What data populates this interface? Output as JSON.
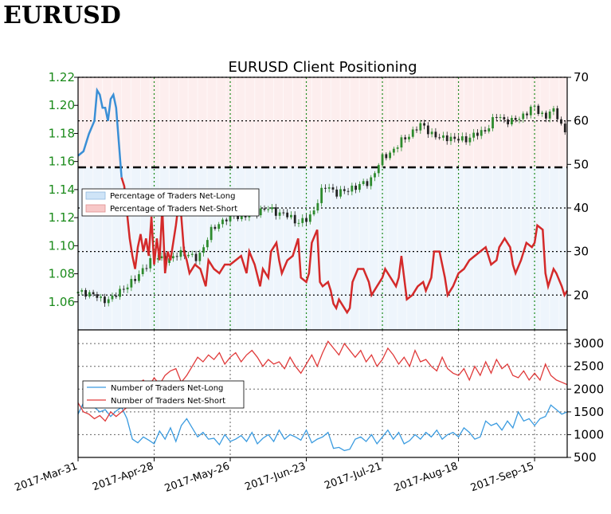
{
  "header": {
    "title": "EURUSD"
  },
  "chart_data": {
    "type": "line",
    "title": "EURUSD Client Positioning",
    "x_tick_labels": [
      "2017-Mar-31",
      "2017-Apr-28",
      "2017-May-26",
      "2017-Jun-23",
      "2017-Jul-21",
      "2017-Aug-18",
      "2017-Sep-15"
    ],
    "x_range_days": [
      0,
      180
    ],
    "price_axis": {
      "ticks": [
        "1.06",
        "1.08",
        "1.10",
        "1.12",
        "1.14",
        "1.16",
        "1.18",
        "1.20",
        "1.22"
      ],
      "ylim": [
        1.04,
        1.22
      ]
    },
    "pct_axis": {
      "ticks": [
        "20",
        "30",
        "40",
        "50",
        "60",
        "70"
      ],
      "ylim": [
        12,
        70
      ],
      "reference_line": 50
    },
    "count_axis": {
      "ticks": [
        "500",
        "1000",
        "1500",
        "2000",
        "2500",
        "3000"
      ],
      "ylim": [
        500,
        3300
      ]
    },
    "colors": {
      "long": "#3a8fd6",
      "short": "#d42a2a",
      "long_count": "#3a9be0",
      "short_count": "#e03a3a",
      "price_up": "#2e8b2e",
      "price_down": "#222222",
      "grid": "#1a8a1a"
    },
    "legend_top": [
      "Percentage of Traders Net-Long",
      "Percentage of Traders Net-Short"
    ],
    "legend_bottom": [
      "Number of Traders Net-Long",
      "Number of Traders Net-Short"
    ],
    "price_points": [
      [
        0,
        1.066
      ],
      [
        3,
        1.067
      ],
      [
        6,
        1.065
      ],
      [
        8,
        1.061
      ],
      [
        10,
        1.062
      ],
      [
        13,
        1.063
      ],
      [
        15,
        1.066
      ],
      [
        17,
        1.071
      ],
      [
        19,
        1.073
      ],
      [
        22,
        1.077
      ],
      [
        24,
        1.085
      ],
      [
        26,
        1.088
      ],
      [
        28,
        1.09
      ],
      [
        30,
        1.092
      ],
      [
        32,
        1.091
      ],
      [
        34,
        1.089
      ],
      [
        36,
        1.093
      ],
      [
        38,
        1.096
      ],
      [
        40,
        1.094
      ],
      [
        43,
        1.09
      ],
      [
        45,
        1.095
      ],
      [
        47,
        1.103
      ],
      [
        49,
        1.11
      ],
      [
        51,
        1.115
      ],
      [
        53,
        1.118
      ],
      [
        56,
        1.12
      ],
      [
        58,
        1.122
      ],
      [
        60,
        1.12
      ],
      [
        63,
        1.123
      ],
      [
        66,
        1.125
      ],
      [
        69,
        1.126
      ],
      [
        72,
        1.125
      ],
      [
        75,
        1.123
      ],
      [
        78,
        1.12
      ],
      [
        80,
        1.118
      ],
      [
        82,
        1.117
      ],
      [
        84,
        1.118
      ],
      [
        86,
        1.122
      ],
      [
        88,
        1.132
      ],
      [
        90,
        1.14
      ],
      [
        92,
        1.142
      ],
      [
        95,
        1.138
      ],
      [
        98,
        1.138
      ],
      [
        101,
        1.142
      ],
      [
        104,
        1.143
      ],
      [
        107,
        1.145
      ],
      [
        110,
        1.156
      ],
      [
        112,
        1.162
      ],
      [
        115,
        1.167
      ],
      [
        118,
        1.172
      ],
      [
        121,
        1.178
      ],
      [
        124,
        1.183
      ],
      [
        127,
        1.186
      ],
      [
        130,
        1.18
      ],
      [
        133,
        1.176
      ],
      [
        136,
        1.178
      ],
      [
        139,
        1.175
      ],
      [
        142,
        1.176
      ],
      [
        145,
        1.178
      ],
      [
        148,
        1.18
      ],
      [
        151,
        1.185
      ],
      [
        154,
        1.192
      ],
      [
        157,
        1.19
      ],
      [
        160,
        1.188
      ],
      [
        163,
        1.192
      ],
      [
        166,
        1.197
      ],
      [
        168,
        1.198
      ],
      [
        170,
        1.195
      ],
      [
        172,
        1.192
      ],
      [
        174,
        1.196
      ],
      [
        176,
        1.194
      ],
      [
        178,
        1.186
      ],
      [
        180,
        1.178
      ]
    ],
    "pct_long_points": [
      [
        0,
        52
      ],
      [
        2,
        53
      ],
      [
        4,
        57
      ],
      [
        6,
        60
      ],
      [
        7,
        67
      ],
      [
        8,
        66
      ],
      [
        9,
        63
      ],
      [
        10,
        63
      ],
      [
        11,
        60
      ],
      [
        12,
        65
      ],
      [
        13,
        66
      ],
      [
        14,
        63
      ],
      [
        15,
        55
      ],
      [
        16,
        47
      ]
    ],
    "pct_short_points": [
      [
        16,
        47
      ],
      [
        17,
        45
      ],
      [
        19,
        33
      ],
      [
        20,
        29
      ],
      [
        21,
        26
      ],
      [
        22,
        31
      ],
      [
        23,
        34
      ],
      [
        24,
        30
      ],
      [
        25,
        33
      ],
      [
        26,
        29
      ],
      [
        27,
        38
      ],
      [
        28,
        27
      ],
      [
        29,
        33
      ],
      [
        30,
        28
      ],
      [
        31,
        40
      ],
      [
        32,
        25
      ],
      [
        33,
        30
      ],
      [
        34,
        28
      ],
      [
        35,
        32
      ],
      [
        36,
        36
      ],
      [
        37,
        41
      ],
      [
        38,
        38
      ],
      [
        39,
        30
      ],
      [
        40,
        28
      ],
      [
        41,
        25
      ],
      [
        43,
        27
      ],
      [
        45,
        26
      ],
      [
        47,
        22
      ],
      [
        48,
        28
      ],
      [
        50,
        26
      ],
      [
        52,
        25
      ],
      [
        54,
        27
      ],
      [
        56,
        27
      ],
      [
        58,
        28
      ],
      [
        60,
        29
      ],
      [
        62,
        25
      ],
      [
        63,
        30
      ],
      [
        65,
        27
      ],
      [
        67,
        22
      ],
      [
        68,
        26
      ],
      [
        70,
        24
      ],
      [
        71,
        30
      ],
      [
        73,
        32
      ],
      [
        74,
        28
      ],
      [
        75,
        25
      ],
      [
        77,
        28
      ],
      [
        79,
        29
      ],
      [
        81,
        33
      ],
      [
        82,
        24
      ],
      [
        84,
        23
      ],
      [
        85,
        25
      ],
      [
        86,
        32
      ],
      [
        88,
        35
      ],
      [
        89,
        23
      ],
      [
        90,
        22
      ],
      [
        92,
        23
      ],
      [
        93,
        21
      ],
      [
        94,
        18
      ],
      [
        95,
        17
      ],
      [
        96,
        19
      ],
      [
        98,
        17
      ],
      [
        99,
        16
      ],
      [
        100,
        17
      ],
      [
        101,
        23
      ],
      [
        103,
        26
      ],
      [
        105,
        26
      ],
      [
        107,
        23
      ],
      [
        108,
        20
      ],
      [
        110,
        22
      ],
      [
        112,
        24
      ],
      [
        113,
        26
      ],
      [
        115,
        24
      ],
      [
        117,
        22
      ],
      [
        118,
        24
      ],
      [
        119,
        29
      ],
      [
        120,
        24
      ],
      [
        121,
        19
      ],
      [
        123,
        20
      ],
      [
        125,
        22
      ],
      [
        127,
        23
      ],
      [
        128,
        21
      ],
      [
        130,
        24
      ],
      [
        131,
        30
      ],
      [
        133,
        30
      ],
      [
        134,
        27
      ],
      [
        135,
        24
      ],
      [
        136,
        20
      ],
      [
        138,
        22
      ],
      [
        140,
        25
      ],
      [
        142,
        26
      ],
      [
        144,
        28
      ],
      [
        146,
        29
      ],
      [
        148,
        30
      ],
      [
        150,
        31
      ],
      [
        152,
        27
      ],
      [
        154,
        28
      ],
      [
        155,
        31
      ],
      [
        157,
        33
      ],
      [
        159,
        31
      ],
      [
        160,
        27
      ],
      [
        161,
        25
      ],
      [
        163,
        28
      ],
      [
        165,
        32
      ],
      [
        167,
        31
      ],
      [
        168,
        32
      ],
      [
        169,
        36
      ],
      [
        171,
        35
      ],
      [
        172,
        25
      ],
      [
        173,
        22
      ],
      [
        175,
        26
      ],
      [
        176,
        25
      ],
      [
        178,
        22
      ],
      [
        179,
        20
      ],
      [
        180,
        21
      ]
    ],
    "count_long_points": [
      [
        0,
        1450
      ],
      [
        2,
        1700
      ],
      [
        4,
        1650
      ],
      [
        6,
        1600
      ],
      [
        8,
        1500
      ],
      [
        10,
        1550
      ],
      [
        12,
        1400
      ],
      [
        14,
        1520
      ],
      [
        16,
        1600
      ],
      [
        18,
        1350
      ],
      [
        20,
        900
      ],
      [
        22,
        820
      ],
      [
        24,
        950
      ],
      [
        26,
        880
      ],
      [
        28,
        800
      ],
      [
        30,
        1080
      ],
      [
        32,
        900
      ],
      [
        34,
        1150
      ],
      [
        36,
        850
      ],
      [
        38,
        1200
      ],
      [
        40,
        1350
      ],
      [
        42,
        1150
      ],
      [
        44,
        950
      ],
      [
        46,
        1050
      ],
      [
        48,
        900
      ],
      [
        50,
        920
      ],
      [
        52,
        780
      ],
      [
        54,
        1000
      ],
      [
        56,
        850
      ],
      [
        58,
        900
      ],
      [
        60,
        980
      ],
      [
        62,
        850
      ],
      [
        64,
        1050
      ],
      [
        66,
        800
      ],
      [
        68,
        920
      ],
      [
        70,
        1000
      ],
      [
        72,
        850
      ],
      [
        74,
        1100
      ],
      [
        76,
        900
      ],
      [
        78,
        1000
      ],
      [
        80,
        950
      ],
      [
        82,
        880
      ],
      [
        84,
        1100
      ],
      [
        86,
        820
      ],
      [
        88,
        900
      ],
      [
        90,
        950
      ],
      [
        92,
        1050
      ],
      [
        94,
        700
      ],
      [
        96,
        720
      ],
      [
        98,
        650
      ],
      [
        100,
        680
      ],
      [
        102,
        900
      ],
      [
        104,
        950
      ],
      [
        106,
        850
      ],
      [
        108,
        1000
      ],
      [
        110,
        800
      ],
      [
        112,
        950
      ],
      [
        114,
        1100
      ],
      [
        116,
        900
      ],
      [
        118,
        1050
      ],
      [
        120,
        800
      ],
      [
        122,
        870
      ],
      [
        124,
        1000
      ],
      [
        126,
        900
      ],
      [
        128,
        1050
      ],
      [
        130,
        950
      ],
      [
        132,
        1100
      ],
      [
        134,
        900
      ],
      [
        136,
        1000
      ],
      [
        138,
        1050
      ],
      [
        140,
        950
      ],
      [
        142,
        1150
      ],
      [
        144,
        1050
      ],
      [
        146,
        900
      ],
      [
        148,
        950
      ],
      [
        150,
        1300
      ],
      [
        152,
        1200
      ],
      [
        154,
        1250
      ],
      [
        156,
        1100
      ],
      [
        158,
        1300
      ],
      [
        160,
        1150
      ],
      [
        162,
        1500
      ],
      [
        164,
        1300
      ],
      [
        166,
        1350
      ],
      [
        168,
        1200
      ],
      [
        170,
        1350
      ],
      [
        172,
        1400
      ],
      [
        174,
        1650
      ],
      [
        176,
        1550
      ],
      [
        178,
        1450
      ],
      [
        180,
        1500
      ]
    ],
    "count_short_points": [
      [
        0,
        1700
      ],
      [
        2,
        1500
      ],
      [
        4,
        1450
      ],
      [
        6,
        1350
      ],
      [
        8,
        1420
      ],
      [
        10,
        1300
      ],
      [
        12,
        1500
      ],
      [
        14,
        1400
      ],
      [
        16,
        1500
      ],
      [
        18,
        1600
      ],
      [
        20,
        1900
      ],
      [
        22,
        2100
      ],
      [
        24,
        2200
      ],
      [
        26,
        2050
      ],
      [
        28,
        2250
      ],
      [
        30,
        2100
      ],
      [
        32,
        2300
      ],
      [
        34,
        2400
      ],
      [
        36,
        2450
      ],
      [
        38,
        2150
      ],
      [
        40,
        2300
      ],
      [
        42,
        2500
      ],
      [
        44,
        2700
      ],
      [
        46,
        2600
      ],
      [
        48,
        2750
      ],
      [
        50,
        2650
      ],
      [
        52,
        2800
      ],
      [
        54,
        2550
      ],
      [
        56,
        2700
      ],
      [
        58,
        2800
      ],
      [
        60,
        2600
      ],
      [
        62,
        2750
      ],
      [
        64,
        2850
      ],
      [
        66,
        2700
      ],
      [
        68,
        2500
      ],
      [
        70,
        2650
      ],
      [
        72,
        2550
      ],
      [
        74,
        2600
      ],
      [
        76,
        2450
      ],
      [
        78,
        2700
      ],
      [
        80,
        2500
      ],
      [
        82,
        2350
      ],
      [
        84,
        2550
      ],
      [
        86,
        2750
      ],
      [
        88,
        2500
      ],
      [
        90,
        2800
      ],
      [
        92,
        3050
      ],
      [
        94,
        2900
      ],
      [
        96,
        2750
      ],
      [
        98,
        3000
      ],
      [
        100,
        2850
      ],
      [
        102,
        2700
      ],
      [
        104,
        2850
      ],
      [
        106,
        2600
      ],
      [
        108,
        2750
      ],
      [
        110,
        2500
      ],
      [
        112,
        2650
      ],
      [
        114,
        2900
      ],
      [
        116,
        2750
      ],
      [
        118,
        2550
      ],
      [
        120,
        2700
      ],
      [
        122,
        2500
      ],
      [
        124,
        2850
      ],
      [
        126,
        2600
      ],
      [
        128,
        2650
      ],
      [
        130,
        2500
      ],
      [
        132,
        2400
      ],
      [
        134,
        2700
      ],
      [
        136,
        2450
      ],
      [
        138,
        2350
      ],
      [
        140,
        2300
      ],
      [
        142,
        2450
      ],
      [
        144,
        2200
      ],
      [
        146,
        2500
      ],
      [
        148,
        2300
      ],
      [
        150,
        2600
      ],
      [
        152,
        2350
      ],
      [
        154,
        2650
      ],
      [
        156,
        2450
      ],
      [
        158,
        2550
      ],
      [
        160,
        2300
      ],
      [
        162,
        2250
      ],
      [
        164,
        2400
      ],
      [
        166,
        2200
      ],
      [
        168,
        2350
      ],
      [
        170,
        2200
      ],
      [
        172,
        2550
      ],
      [
        174,
        2300
      ],
      [
        176,
        2200
      ],
      [
        178,
        2150
      ],
      [
        180,
        2100
      ]
    ]
  }
}
